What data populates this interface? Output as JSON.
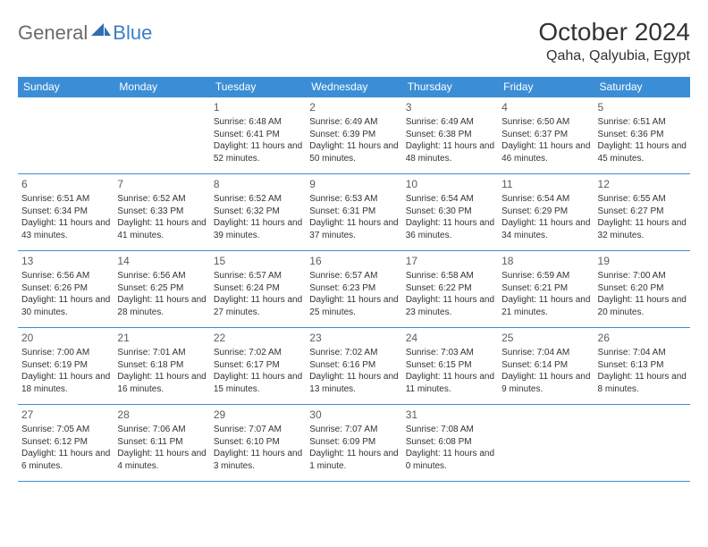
{
  "logo": {
    "general": "General",
    "blue": "Blue"
  },
  "header": {
    "month_title": "October 2024",
    "location": "Qaha, Qalyubia, Egypt"
  },
  "colors": {
    "header_bg": "#3b8ed6",
    "header_text": "#ffffff",
    "cell_border": "#3b8ed6",
    "body_text": "#333333",
    "logo_gray": "#6b6b6b",
    "logo_blue": "#3b7fc4",
    "page_bg": "#ffffff"
  },
  "typography": {
    "title_fontsize": 28,
    "location_fontsize": 16,
    "dayheader_fontsize": 12,
    "daynum_fontsize": 12,
    "cell_fontsize": 10
  },
  "day_headers": [
    "Sunday",
    "Monday",
    "Tuesday",
    "Wednesday",
    "Thursday",
    "Friday",
    "Saturday"
  ],
  "weeks": [
    [
      null,
      null,
      {
        "num": "1",
        "sunrise": "Sunrise: 6:48 AM",
        "sunset": "Sunset: 6:41 PM",
        "daylight": "Daylight: 11 hours and 52 minutes."
      },
      {
        "num": "2",
        "sunrise": "Sunrise: 6:49 AM",
        "sunset": "Sunset: 6:39 PM",
        "daylight": "Daylight: 11 hours and 50 minutes."
      },
      {
        "num": "3",
        "sunrise": "Sunrise: 6:49 AM",
        "sunset": "Sunset: 6:38 PM",
        "daylight": "Daylight: 11 hours and 48 minutes."
      },
      {
        "num": "4",
        "sunrise": "Sunrise: 6:50 AM",
        "sunset": "Sunset: 6:37 PM",
        "daylight": "Daylight: 11 hours and 46 minutes."
      },
      {
        "num": "5",
        "sunrise": "Sunrise: 6:51 AM",
        "sunset": "Sunset: 6:36 PM",
        "daylight": "Daylight: 11 hours and 45 minutes."
      }
    ],
    [
      {
        "num": "6",
        "sunrise": "Sunrise: 6:51 AM",
        "sunset": "Sunset: 6:34 PM",
        "daylight": "Daylight: 11 hours and 43 minutes."
      },
      {
        "num": "7",
        "sunrise": "Sunrise: 6:52 AM",
        "sunset": "Sunset: 6:33 PM",
        "daylight": "Daylight: 11 hours and 41 minutes."
      },
      {
        "num": "8",
        "sunrise": "Sunrise: 6:52 AM",
        "sunset": "Sunset: 6:32 PM",
        "daylight": "Daylight: 11 hours and 39 minutes."
      },
      {
        "num": "9",
        "sunrise": "Sunrise: 6:53 AM",
        "sunset": "Sunset: 6:31 PM",
        "daylight": "Daylight: 11 hours and 37 minutes."
      },
      {
        "num": "10",
        "sunrise": "Sunrise: 6:54 AM",
        "sunset": "Sunset: 6:30 PM",
        "daylight": "Daylight: 11 hours and 36 minutes."
      },
      {
        "num": "11",
        "sunrise": "Sunrise: 6:54 AM",
        "sunset": "Sunset: 6:29 PM",
        "daylight": "Daylight: 11 hours and 34 minutes."
      },
      {
        "num": "12",
        "sunrise": "Sunrise: 6:55 AM",
        "sunset": "Sunset: 6:27 PM",
        "daylight": "Daylight: 11 hours and 32 minutes."
      }
    ],
    [
      {
        "num": "13",
        "sunrise": "Sunrise: 6:56 AM",
        "sunset": "Sunset: 6:26 PM",
        "daylight": "Daylight: 11 hours and 30 minutes."
      },
      {
        "num": "14",
        "sunrise": "Sunrise: 6:56 AM",
        "sunset": "Sunset: 6:25 PM",
        "daylight": "Daylight: 11 hours and 28 minutes."
      },
      {
        "num": "15",
        "sunrise": "Sunrise: 6:57 AM",
        "sunset": "Sunset: 6:24 PM",
        "daylight": "Daylight: 11 hours and 27 minutes."
      },
      {
        "num": "16",
        "sunrise": "Sunrise: 6:57 AM",
        "sunset": "Sunset: 6:23 PM",
        "daylight": "Daylight: 11 hours and 25 minutes."
      },
      {
        "num": "17",
        "sunrise": "Sunrise: 6:58 AM",
        "sunset": "Sunset: 6:22 PM",
        "daylight": "Daylight: 11 hours and 23 minutes."
      },
      {
        "num": "18",
        "sunrise": "Sunrise: 6:59 AM",
        "sunset": "Sunset: 6:21 PM",
        "daylight": "Daylight: 11 hours and 21 minutes."
      },
      {
        "num": "19",
        "sunrise": "Sunrise: 7:00 AM",
        "sunset": "Sunset: 6:20 PM",
        "daylight": "Daylight: 11 hours and 20 minutes."
      }
    ],
    [
      {
        "num": "20",
        "sunrise": "Sunrise: 7:00 AM",
        "sunset": "Sunset: 6:19 PM",
        "daylight": "Daylight: 11 hours and 18 minutes."
      },
      {
        "num": "21",
        "sunrise": "Sunrise: 7:01 AM",
        "sunset": "Sunset: 6:18 PM",
        "daylight": "Daylight: 11 hours and 16 minutes."
      },
      {
        "num": "22",
        "sunrise": "Sunrise: 7:02 AM",
        "sunset": "Sunset: 6:17 PM",
        "daylight": "Daylight: 11 hours and 15 minutes."
      },
      {
        "num": "23",
        "sunrise": "Sunrise: 7:02 AM",
        "sunset": "Sunset: 6:16 PM",
        "daylight": "Daylight: 11 hours and 13 minutes."
      },
      {
        "num": "24",
        "sunrise": "Sunrise: 7:03 AM",
        "sunset": "Sunset: 6:15 PM",
        "daylight": "Daylight: 11 hours and 11 minutes."
      },
      {
        "num": "25",
        "sunrise": "Sunrise: 7:04 AM",
        "sunset": "Sunset: 6:14 PM",
        "daylight": "Daylight: 11 hours and 9 minutes."
      },
      {
        "num": "26",
        "sunrise": "Sunrise: 7:04 AM",
        "sunset": "Sunset: 6:13 PM",
        "daylight": "Daylight: 11 hours and 8 minutes."
      }
    ],
    [
      {
        "num": "27",
        "sunrise": "Sunrise: 7:05 AM",
        "sunset": "Sunset: 6:12 PM",
        "daylight": "Daylight: 11 hours and 6 minutes."
      },
      {
        "num": "28",
        "sunrise": "Sunrise: 7:06 AM",
        "sunset": "Sunset: 6:11 PM",
        "daylight": "Daylight: 11 hours and 4 minutes."
      },
      {
        "num": "29",
        "sunrise": "Sunrise: 7:07 AM",
        "sunset": "Sunset: 6:10 PM",
        "daylight": "Daylight: 11 hours and 3 minutes."
      },
      {
        "num": "30",
        "sunrise": "Sunrise: 7:07 AM",
        "sunset": "Sunset: 6:09 PM",
        "daylight": "Daylight: 11 hours and 1 minute."
      },
      {
        "num": "31",
        "sunrise": "Sunrise: 7:08 AM",
        "sunset": "Sunset: 6:08 PM",
        "daylight": "Daylight: 11 hours and 0 minutes."
      },
      null,
      null
    ]
  ]
}
